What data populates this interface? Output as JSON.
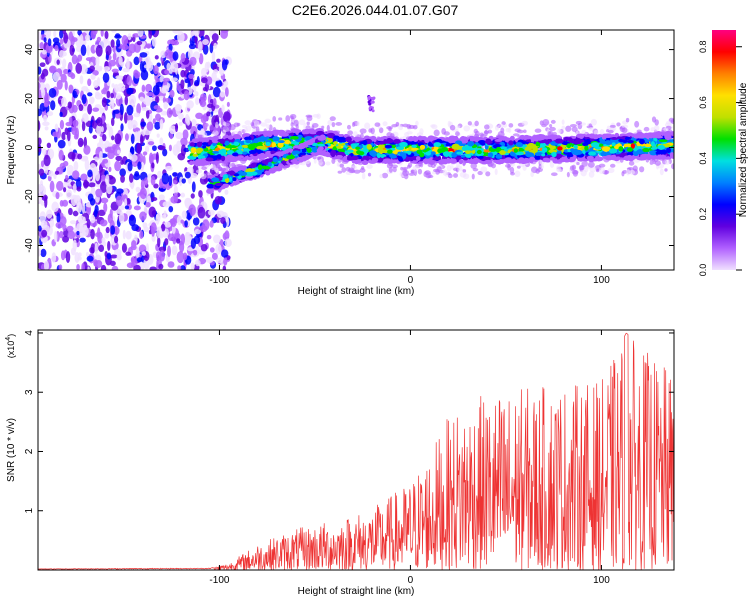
{
  "title": "C2E6.2026.044.01.07.G07",
  "chart_data": [
    {
      "type": "heatmap",
      "xlabel": "Height of straight line (km)",
      "ylabel": "Frequency (Hz)",
      "xlim": [
        -195,
        138
      ],
      "ylim": [
        -50,
        48
      ],
      "x_ticks": [
        -100,
        0,
        100
      ],
      "x_tick_labels": [
        "-100",
        "0",
        "100"
      ],
      "y_ticks": [
        -40,
        -20,
        0,
        20,
        40
      ],
      "y_tick_labels": [
        "-40",
        "-20",
        "0",
        "20",
        "40"
      ],
      "colorbar": {
        "label": "Normalized spectral amplitude",
        "range": [
          0,
          0.86
        ],
        "ticks": [
          0.0,
          0.2,
          0.4,
          0.6,
          0.8
        ],
        "tick_labels": [
          "0.0",
          "0.2",
          "0.4",
          "0.6",
          "0.8"
        ],
        "colors": [
          "#f0e0ff",
          "#b060ff",
          "#6000e0",
          "#0000ff",
          "#0080ff",
          "#00e0e0",
          "#00e000",
          "#c0e000",
          "#ffe000",
          "#ff8000",
          "#ff0000",
          "#ff0080"
        ]
      },
      "ridge": {
        "description_points_km_hz": [
          [
            -115,
            -2
          ],
          [
            -100,
            -1
          ],
          [
            -80,
            1
          ],
          [
            -60,
            2
          ],
          [
            -45,
            2
          ],
          [
            -30,
            -1
          ],
          [
            0,
            -1
          ],
          [
            50,
            -1
          ],
          [
            100,
            0
          ],
          [
            138,
            1
          ]
        ],
        "branch_km_hz": [
          [
            -105,
            -15
          ],
          [
            -80,
            -9
          ],
          [
            -60,
            -3
          ],
          [
            -45,
            2
          ]
        ],
        "noise_region_km": [
          -195,
          -103
        ]
      }
    },
    {
      "type": "line",
      "xlabel": "Height of straight line (km)",
      "ylabel": "SNR (10 * v/v)",
      "y_multiplier_label": "(x10",
      "y_multiplier_exp": "4",
      "y_multiplier_close": ")",
      "xlim": [
        -195,
        138
      ],
      "ylim": [
        0,
        4.05
      ],
      "x_ticks": [
        -100,
        0,
        100
      ],
      "x_tick_labels": [
        "-100",
        "0",
        "100"
      ],
      "y_ticks": [
        1,
        2,
        3,
        4
      ],
      "y_tick_labels": [
        "1",
        "2",
        "3",
        "4"
      ],
      "color": "#ee3333",
      "envelope_km_snr": [
        [
          -195,
          0.02
        ],
        [
          -105,
          0.03
        ],
        [
          -95,
          0.12
        ],
        [
          -80,
          0.45
        ],
        [
          -60,
          0.7
        ],
        [
          -40,
          0.85
        ],
        [
          -20,
          1.05
        ],
        [
          0,
          1.5
        ],
        [
          10,
          2.0
        ],
        [
          20,
          2.6
        ],
        [
          30,
          2.9
        ],
        [
          60,
          3.1
        ],
        [
          100,
          3.2
        ],
        [
          113,
          4.0
        ],
        [
          138,
          3.3
        ]
      ]
    }
  ]
}
